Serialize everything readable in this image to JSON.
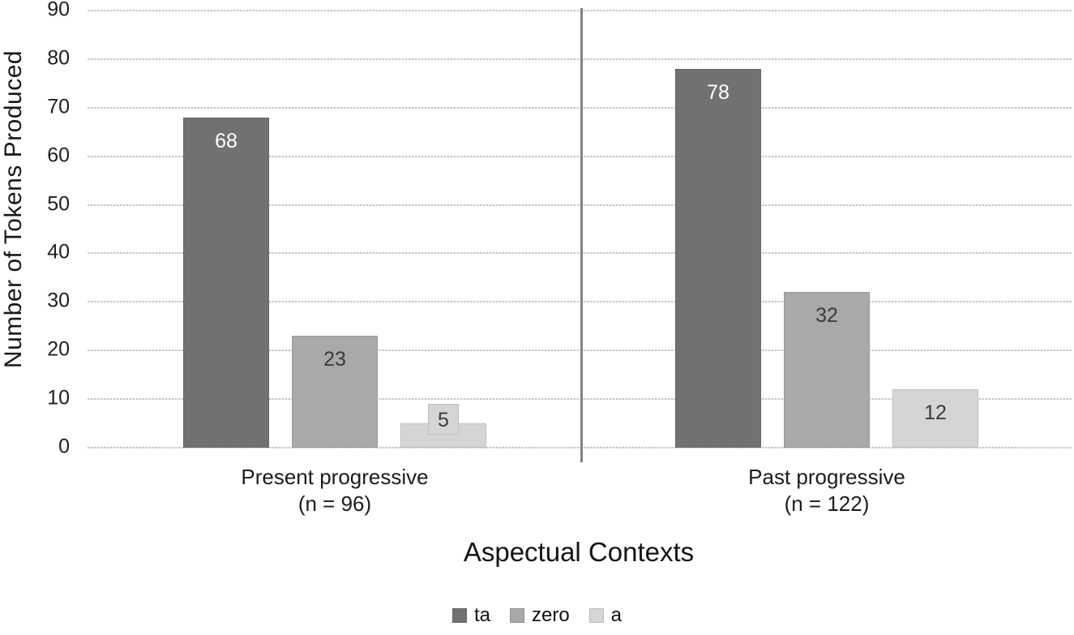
{
  "chart_data": {
    "type": "bar",
    "title": "",
    "xlabel": "Aspectual Contexts",
    "ylabel": "Number of Tokens Produced",
    "ylim": [
      0,
      90
    ],
    "yticks": [
      0,
      10,
      20,
      30,
      40,
      50,
      60,
      70,
      80,
      90
    ],
    "grid": "horizontal-dashed",
    "legend_position": "bottom-center",
    "categories": [
      "Present progressive",
      "Past progressive"
    ],
    "category_sublabels": [
      "(n = 96)",
      "(n = 122)"
    ],
    "series": [
      {
        "name": "ta",
        "color": "#717171",
        "label_color": "#ffffff",
        "values": [
          68,
          78
        ]
      },
      {
        "name": "zero",
        "color": "#a9a9a9",
        "label_color": "#3a3a3a",
        "values": [
          23,
          32
        ]
      },
      {
        "name": "a",
        "color": "#d5d5d5",
        "label_color": "#3a3a3a",
        "values": [
          5,
          12
        ]
      }
    ]
  },
  "colors": {
    "gridline": "#c7c7c7",
    "group_divider": "#828282",
    "axis_text": "#1f1f1f"
  }
}
